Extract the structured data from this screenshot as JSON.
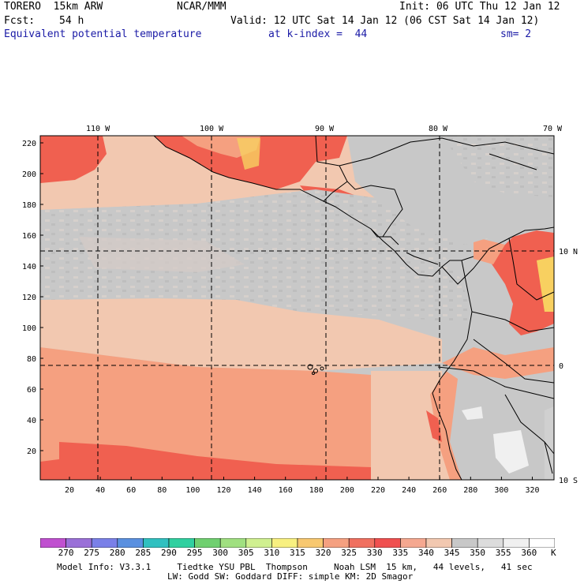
{
  "header": {
    "title_left": "TORERO  15km ARW",
    "center_org": "NCAR/MMM",
    "init": "Init: 06 UTC Thu 12 Jan 12",
    "fcst_label": "Fcst:",
    "fcst_value": "54 h",
    "valid": "Valid: 12 UTC Sat 14 Jan 12 (06 CST Sat 14 Jan 12)",
    "field": "Equivalent potential temperature",
    "level": "at k-index =  44",
    "smoothing": "sm= 2"
  },
  "map": {
    "top_lon_labels": [
      "110 W",
      "100 W",
      "90 W",
      "80 W",
      "70 W"
    ],
    "right_lat_labels": [
      "10 N",
      "0",
      "10 S"
    ],
    "left_y_ticks": [
      "220",
      "200",
      "180",
      "160",
      "140",
      "120",
      "100",
      "80",
      "60",
      "40",
      "20"
    ],
    "bottom_x_ticks": [
      "20",
      "40",
      "60",
      "80",
      "100",
      "120",
      "140",
      "160",
      "180",
      "200",
      "220",
      "240",
      "260",
      "280",
      "300",
      "320"
    ],
    "colors": {
      "ocean_cool": "#c8c8c8",
      "band_peach": "#f2c8b0",
      "band_salmon": "#f5a080",
      "band_red": "#f06050",
      "band_yellow": "#f8d060",
      "coast": "#000000"
    }
  },
  "colorbar": {
    "unit": "K",
    "labels": [
      "270",
      "275",
      "280",
      "285",
      "290",
      "295",
      "300",
      "305",
      "310",
      "315",
      "320",
      "325",
      "330",
      "335",
      "340",
      "345",
      "350",
      "355",
      "360"
    ],
    "colors": [
      "#c050d0",
      "#9a70d8",
      "#7a80e8",
      "#5a90e0",
      "#30c0c0",
      "#30d0a0",
      "#70d070",
      "#a0e080",
      "#d0f090",
      "#f8f080",
      "#f8c870",
      "#f5a080",
      "#f07060",
      "#f05050",
      "#f5a890",
      "#f2c8b0",
      "#c8c8c8",
      "#dcdcdc",
      "#f0f0f0",
      "#ffffff"
    ]
  },
  "footer": {
    "line1": "Model Info: V3.3.1     Tiedtke YSU PBL  Thompson     Noah LSM  15 km,   44 levels,   41 sec",
    "line2": "LW: Godd SW: Goddard DIFF: simple KM: 2D Smagor"
  }
}
